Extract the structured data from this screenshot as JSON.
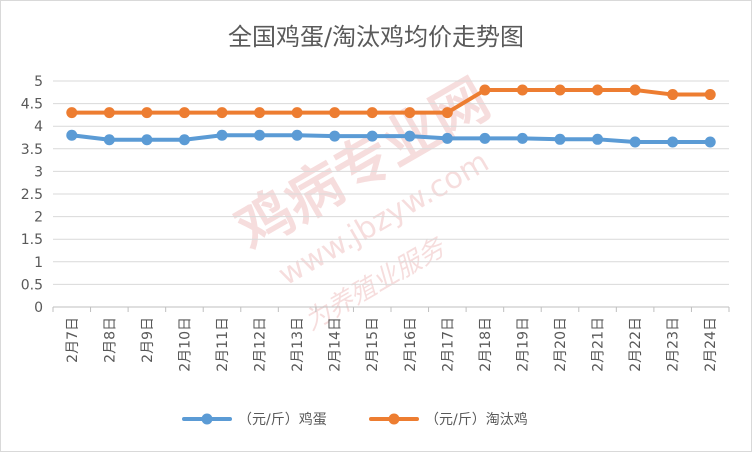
{
  "chart_data": {
    "type": "line",
    "title": "全国鸡蛋/淘汰鸡均价走势图",
    "categories": [
      "2月7日",
      "2月8日",
      "2月9日",
      "2月10日",
      "2月11日",
      "2月12日",
      "2月13日",
      "2月14日",
      "2月15日",
      "2月16日",
      "2月17日",
      "2月18日",
      "2月19日",
      "2月20日",
      "2月21日",
      "2月22日",
      "2月23日",
      "2月24日"
    ],
    "series": [
      {
        "name": "（元/斤）鸡蛋",
        "color": "#5b9bd5",
        "values": [
          3.8,
          3.7,
          3.7,
          3.7,
          3.8,
          3.8,
          3.8,
          3.78,
          3.78,
          3.78,
          3.73,
          3.73,
          3.73,
          3.71,
          3.71,
          3.65,
          3.65,
          3.65
        ]
      },
      {
        "name": "（元/斤）淘汰鸡",
        "color": "#ed7d31",
        "values": [
          4.3,
          4.3,
          4.3,
          4.3,
          4.3,
          4.3,
          4.3,
          4.3,
          4.3,
          4.3,
          4.3,
          4.8,
          4.8,
          4.8,
          4.8,
          4.8,
          4.7,
          4.7
        ]
      }
    ],
    "ylim": [
      0,
      5
    ],
    "yticks": [
      "0",
      "0.5",
      "1",
      "1.5",
      "2",
      "2.5",
      "3",
      "3.5",
      "4",
      "4.5",
      "5"
    ],
    "grid": true,
    "legend": "bottom"
  },
  "watermark": {
    "name": "鸡病专业网",
    "url": "www.jbzyw.com",
    "slogan": "为养殖业服务"
  }
}
